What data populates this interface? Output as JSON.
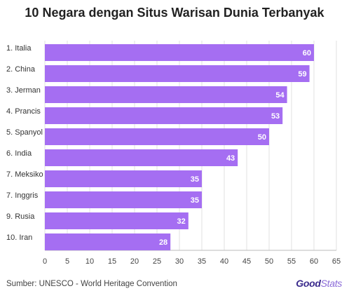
{
  "chart_data": {
    "type": "bar",
    "orientation": "horizontal",
    "title": "10 Negara dengan Situs Warisan Dunia Terbanyak",
    "categories": [
      "1. Italia",
      "2. China",
      "3. Jerman",
      "4. Prancis",
      "5. Spanyol",
      "6. India",
      "7. Meksiko",
      "7. Inggris",
      "9. Rusia",
      "10. Iran"
    ],
    "values": [
      60,
      59,
      54,
      53,
      50,
      43,
      35,
      35,
      32,
      28
    ],
    "xlim": [
      0,
      65
    ],
    "xticks": [
      0,
      5,
      10,
      15,
      20,
      25,
      30,
      35,
      40,
      45,
      50,
      55,
      60,
      65
    ],
    "grid": true,
    "bar_color": "#a56ef2",
    "label_color": "#ffffff"
  },
  "footer": {
    "source": "Sumber: UNESCO - World Heritage Convention",
    "logo_main": "Good",
    "logo_accent": "Stats"
  },
  "colors": {
    "logo_main": "#3a2a8c",
    "logo_accent": "#8a6ad8"
  }
}
